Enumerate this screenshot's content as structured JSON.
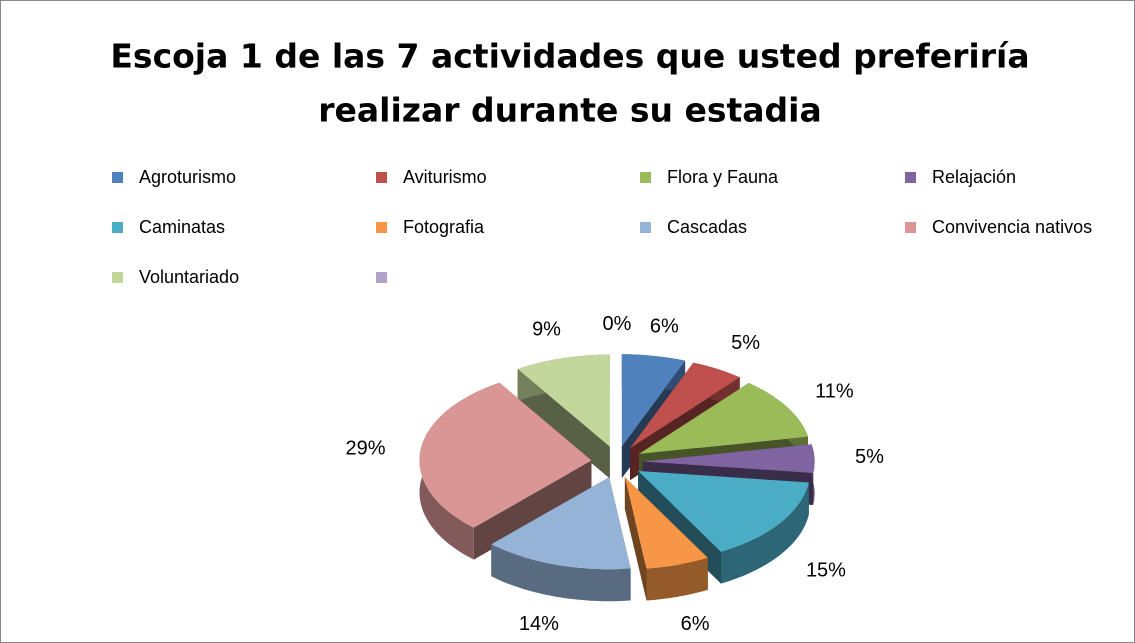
{
  "chart_data": {
    "type": "pie3d",
    "title": [
      "Escoja 1 de las 7 actividades que usted preferiría",
      "realizar durante su estadia"
    ],
    "categories": [
      "Agroturismo",
      "Aviturismo",
      "Flora y Fauna",
      "Relajación",
      "Caminatas",
      "Fotografia",
      "Cascadas",
      "Convivencia nativos",
      "Voluntariado",
      null
    ],
    "values": [
      6,
      5,
      11,
      5,
      15,
      6,
      14,
      29,
      9,
      0
    ],
    "value_labels": [
      "6%",
      "5%",
      "11%",
      "5%",
      "15%",
      "6%",
      "14%",
      "29%",
      "9%",
      "0%"
    ],
    "colors": [
      "#4f81bd",
      "#c0504d",
      "#9bbb59",
      "#8064a2",
      "#4bacc6",
      "#f79646",
      "#95b3d7",
      "#d99694",
      "#c3d69b",
      "#b3a2c7"
    ],
    "legend": "top"
  }
}
